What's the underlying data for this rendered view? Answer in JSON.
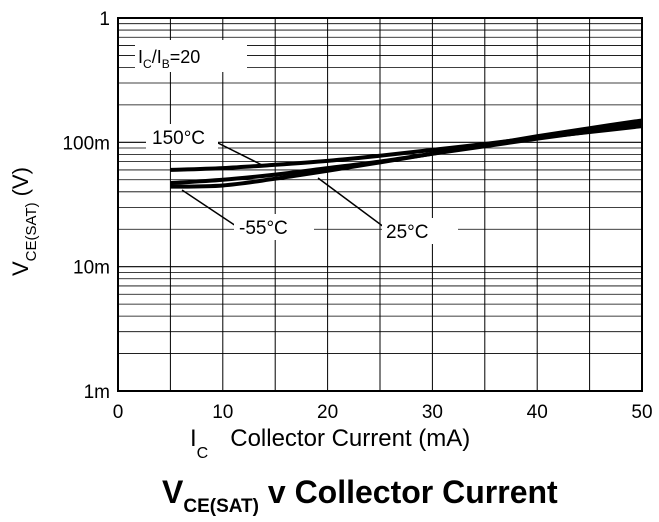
{
  "chart_data": {
    "type": "line",
    "title": "V",
    "title_sub": "CE(SAT)",
    "title_rest": " v Collector Current",
    "xlabel_main": "I",
    "xlabel_sub": "C",
    "xlabel_rest": "Collector Current (mA)",
    "ylabel_main": "V",
    "ylabel_sub": "CE(SAT)",
    "ylabel_rest": "(V)",
    "xlim": [
      0,
      50
    ],
    "ylim": [
      0.001,
      1
    ],
    "yscale": "log",
    "grid": true,
    "xticks": [
      "0",
      "10",
      "20",
      "30",
      "40",
      "50"
    ],
    "yticks": [
      "1m",
      "10m",
      "100m",
      "1"
    ],
    "condition": {
      "main": "I",
      "sub1": "C",
      "mid": "/I",
      "sub2": "B",
      "rest": "=20"
    },
    "series": [
      {
        "name": "150°C",
        "x": [
          5,
          10,
          15,
          20,
          25,
          30,
          35,
          40,
          45,
          50
        ],
        "y": [
          0.06,
          0.062,
          0.066,
          0.071,
          0.078,
          0.087,
          0.097,
          0.109,
          0.121,
          0.135
        ]
      },
      {
        "name": "25°C",
        "x": [
          5,
          10,
          15,
          20,
          25,
          30,
          35,
          40,
          45,
          50
        ],
        "y": [
          0.047,
          0.05,
          0.055,
          0.062,
          0.07,
          0.081,
          0.093,
          0.107,
          0.122,
          0.14
        ]
      },
      {
        "name": "-55°C",
        "x": [
          5,
          10,
          15,
          20,
          25,
          30,
          35,
          40,
          45,
          50
        ],
        "y": [
          0.044,
          0.045,
          0.051,
          0.059,
          0.069,
          0.081,
          0.095,
          0.112,
          0.13,
          0.15
        ]
      }
    ]
  }
}
